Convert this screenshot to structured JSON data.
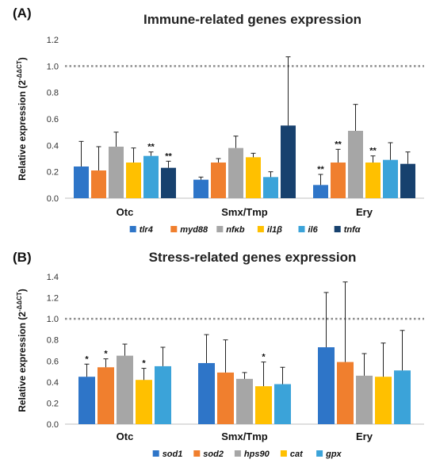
{
  "chart_data": [
    {
      "type": "bar",
      "panel_label": "(A)",
      "title": "Immune-related genes expression",
      "ylabel_base": "Relative expression (2",
      "ylabel_sup": "-ΔΔCT",
      "ylabel_end": ")",
      "ylim": [
        0,
        1.2
      ],
      "yticks": [
        "0.0",
        "0.2",
        "0.4",
        "0.6",
        "0.8",
        "1.0",
        "1.2"
      ],
      "reference_line": 1.0,
      "categories": [
        "Otc",
        "Smx/Tmp",
        "Ery"
      ],
      "series": [
        {
          "name": "tlr4",
          "color": "#2E75C8",
          "values": [
            0.24,
            0.14,
            0.1
          ],
          "errors": [
            0.19,
            0.02,
            0.08
          ],
          "marks": [
            "",
            "",
            "**"
          ]
        },
        {
          "name": "myd88",
          "color": "#F07F2E",
          "values": [
            0.21,
            0.27,
            0.27
          ],
          "errors": [
            0.18,
            0.03,
            0.1
          ],
          "marks": [
            "",
            "",
            "**"
          ]
        },
        {
          "name": "nfκb",
          "color": "#A6A6A6",
          "values": [
            0.39,
            0.38,
            0.51
          ],
          "errors": [
            0.11,
            0.09,
            0.2
          ],
          "marks": [
            "",
            "",
            ""
          ]
        },
        {
          "name": "il1β",
          "color": "#FFC000",
          "values": [
            0.27,
            0.31,
            0.27
          ],
          "errors": [
            0.11,
            0.03,
            0.05
          ],
          "marks": [
            "",
            "",
            "**"
          ]
        },
        {
          "name": "il6",
          "color": "#3BA3D9",
          "values": [
            0.32,
            0.16,
            0.29
          ],
          "errors": [
            0.03,
            0.04,
            0.13
          ],
          "marks": [
            "**",
            "",
            ""
          ]
        },
        {
          "name": "tnfα",
          "color": "#17416E",
          "values": [
            0.23,
            0.55,
            0.26
          ],
          "errors": [
            0.05,
            0.52,
            0.09
          ],
          "marks": [
            "**",
            "",
            ""
          ]
        }
      ],
      "grid": false,
      "legend_position": "bottom"
    },
    {
      "type": "bar",
      "panel_label": "(B)",
      "title": "Stress-related genes expression",
      "ylabel_base": "Relative expression (2",
      "ylabel_sup": "-ΔΔCT",
      "ylabel_end": ")",
      "ylim": [
        0,
        1.4
      ],
      "yticks": [
        "0.0",
        "0.2",
        "0.4",
        "0.6",
        "0.8",
        "1.0",
        "1.2",
        "1.4"
      ],
      "reference_line": 1.0,
      "categories": [
        "Otc",
        "Smx/Tmp",
        "Ery"
      ],
      "series": [
        {
          "name": "sod1",
          "color": "#2E75C8",
          "values": [
            0.45,
            0.58,
            0.73
          ],
          "errors": [
            0.12,
            0.27,
            0.52
          ],
          "marks": [
            "*",
            "",
            ""
          ]
        },
        {
          "name": "sod2",
          "color": "#F07F2E",
          "values": [
            0.54,
            0.49,
            0.59
          ],
          "errors": [
            0.08,
            0.31,
            0.76
          ],
          "marks": [
            "*",
            "",
            ""
          ]
        },
        {
          "name": "hps90",
          "color": "#A6A6A6",
          "values": [
            0.65,
            0.43,
            0.46
          ],
          "errors": [
            0.11,
            0.06,
            0.21
          ],
          "marks": [
            "",
            "",
            ""
          ]
        },
        {
          "name": "cat",
          "color": "#FFC000",
          "values": [
            0.42,
            0.36,
            0.45
          ],
          "errors": [
            0.11,
            0.23,
            0.32
          ],
          "marks": [
            "*",
            "*",
            ""
          ]
        },
        {
          "name": "gpx",
          "color": "#3BA3D9",
          "values": [
            0.55,
            0.38,
            0.51
          ],
          "errors": [
            0.18,
            0.16,
            0.38
          ],
          "marks": [
            "",
            "",
            ""
          ]
        }
      ],
      "grid": false,
      "legend_position": "bottom"
    }
  ]
}
